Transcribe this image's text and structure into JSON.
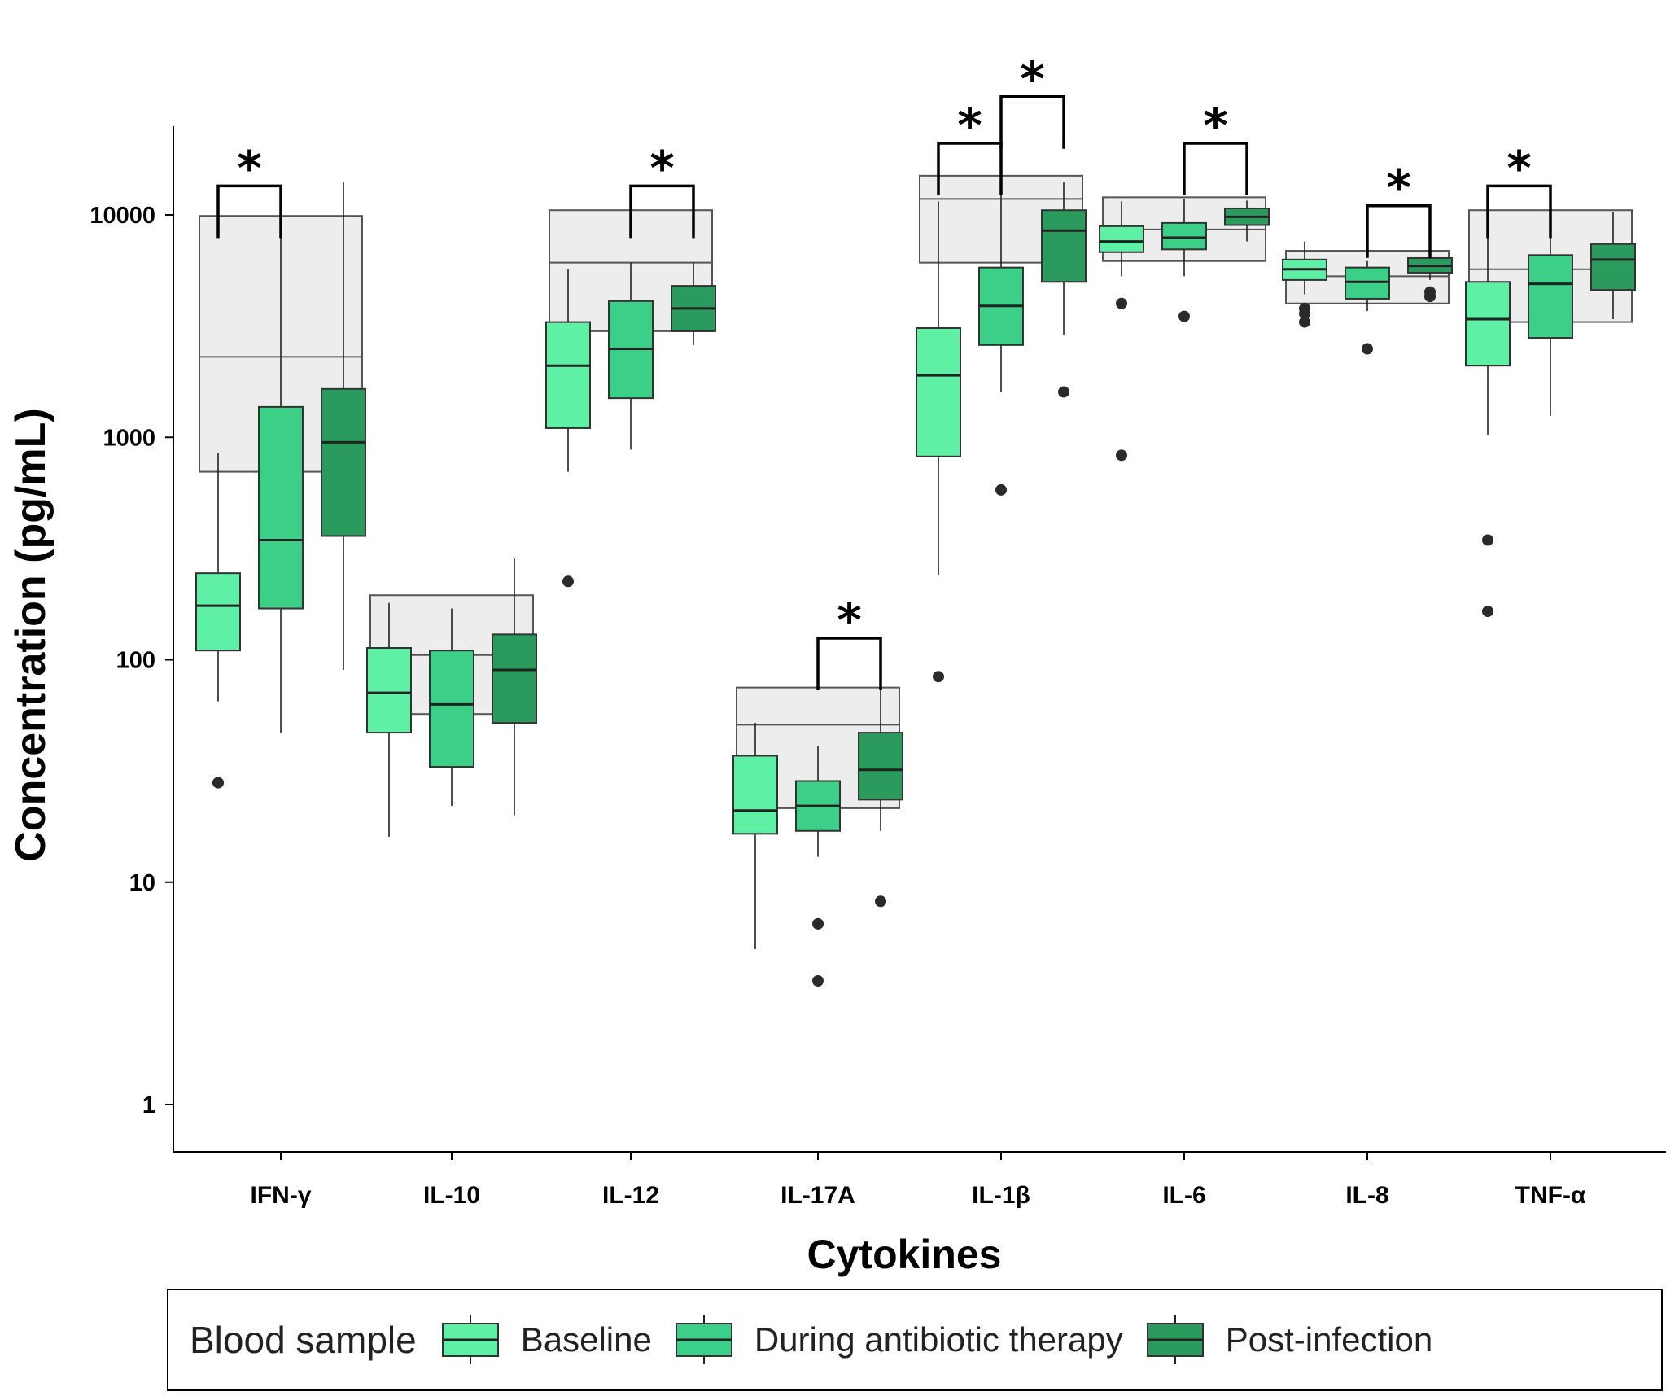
{
  "chart_data": {
    "type": "boxplot",
    "xlabel": "Cytokines",
    "ylabel": "Concentration (pg/mL)",
    "yscale": "log10",
    "ylim": [
      0.7,
      25000
    ],
    "yticks": [
      1,
      10,
      100,
      1000,
      10000
    ],
    "ytick_labels": [
      "1",
      "10",
      "100",
      "1000",
      "10000"
    ],
    "categories": [
      "IFN-γ",
      "IL-10",
      "IL-12",
      "IL-17A",
      "IL-1β",
      "IL-6",
      "IL-8",
      "TNF-α"
    ],
    "significance_marker": "*",
    "series": [
      {
        "name": "Baseline",
        "color": "#5ef0a5",
        "boxes": [
          {
            "q1": 110,
            "median": 175,
            "q3": 245,
            "whisker_low": 65,
            "whisker_high": 850,
            "outliers": [
              28
            ]
          },
          {
            "q1": 47,
            "median": 71,
            "q3": 113,
            "whisker_low": 16,
            "whisker_high": 180,
            "outliers": []
          },
          {
            "q1": 1100,
            "median": 2100,
            "q3": 3300,
            "whisker_low": 700,
            "whisker_high": 5700,
            "outliers": [
              225
            ]
          },
          {
            "q1": 16.5,
            "median": 21,
            "q3": 37,
            "whisker_low": 5,
            "whisker_high": 52,
            "outliers": []
          },
          {
            "q1": 820,
            "median": 1900,
            "q3": 3100,
            "whisker_low": 240,
            "whisker_high": 11500,
            "outliers": [
              84
            ]
          },
          {
            "q1": 6800,
            "median": 7600,
            "q3": 8900,
            "whisker_low": 5300,
            "whisker_high": 11500,
            "outliers": [
              4000,
              830
            ]
          },
          {
            "q1": 5100,
            "median": 5700,
            "q3": 6300,
            "whisker_low": 4400,
            "whisker_high": 7600,
            "outliers": [
              3800,
              3600,
              3300
            ]
          },
          {
            "q1": 2100,
            "median": 3400,
            "q3": 5000,
            "whisker_low": 1020,
            "whisker_high": 9600,
            "outliers": [
              345,
              165
            ]
          }
        ]
      },
      {
        "name": "During antibiotic therapy",
        "color": "#3ccf87",
        "boxes": [
          {
            "q1": 170,
            "median": 345,
            "q3": 1370,
            "whisker_low": 47,
            "whisker_high": 9300,
            "outliers": []
          },
          {
            "q1": 33,
            "median": 63,
            "q3": 110,
            "whisker_low": 22,
            "whisker_high": 170,
            "outliers": []
          },
          {
            "q1": 1500,
            "median": 2500,
            "q3": 4100,
            "whisker_low": 880,
            "whisker_high": 6100,
            "outliers": []
          },
          {
            "q1": 17,
            "median": 22,
            "q3": 28.5,
            "whisker_low": 13,
            "whisker_high": 41,
            "outliers": [
              6.5,
              3.6
            ]
          },
          {
            "q1": 2600,
            "median": 3900,
            "q3": 5800,
            "whisker_low": 1600,
            "whisker_high": 13000,
            "outliers": [
              580
            ]
          },
          {
            "q1": 7000,
            "median": 7900,
            "q3": 9200,
            "whisker_low": 5300,
            "whisker_high": 11800,
            "outliers": [
              3500
            ]
          },
          {
            "q1": 4200,
            "median": 5000,
            "q3": 5800,
            "whisker_low": 3700,
            "whisker_high": 6200,
            "outliers": [
              2500
            ]
          },
          {
            "q1": 2800,
            "median": 4900,
            "q3": 6600,
            "whisker_low": 1250,
            "whisker_high": 10100,
            "outliers": []
          }
        ]
      },
      {
        "name": "Post-infection",
        "color": "#2a9a5d",
        "boxes": [
          {
            "q1": 360,
            "median": 950,
            "q3": 1650,
            "whisker_low": 90,
            "whisker_high": 14000,
            "outliers": []
          },
          {
            "q1": 52,
            "median": 90,
            "q3": 130,
            "whisker_low": 20,
            "whisker_high": 285,
            "outliers": []
          },
          {
            "q1": 3000,
            "median": 3800,
            "q3": 4800,
            "whisker_low": 2600,
            "whisker_high": 6100,
            "outliers": []
          },
          {
            "q1": 23.5,
            "median": 32,
            "q3": 47,
            "whisker_low": 17,
            "whisker_high": 96,
            "outliers": [
              8.2
            ]
          },
          {
            "q1": 5000,
            "median": 8500,
            "q3": 10500,
            "whisker_low": 2900,
            "whisker_high": 14000,
            "outliers": [
              1600
            ]
          },
          {
            "q1": 9000,
            "median": 9800,
            "q3": 10700,
            "whisker_low": 7600,
            "whisker_high": 11600,
            "outliers": []
          },
          {
            "q1": 5500,
            "median": 5900,
            "q3": 6400,
            "whisker_low": 5100,
            "whisker_high": 7000,
            "outliers": [
              4500,
              4300
            ]
          },
          {
            "q1": 4600,
            "median": 6300,
            "q3": 7400,
            "whisker_low": 3400,
            "whisker_high": 10300,
            "outliers": []
          }
        ]
      }
    ],
    "reference_ranges": [
      {
        "low": 700,
        "median": 2300,
        "high": 9900
      },
      {
        "low": 57,
        "median": 105,
        "high": 195
      },
      {
        "low": 3000,
        "median": 6100,
        "high": 10500
      },
      {
        "low": 21.5,
        "median": 51,
        "high": 75
      },
      {
        "low": 6100,
        "median": 11800,
        "high": 15000
      },
      {
        "low": 6200,
        "median": 8600,
        "high": 12000
      },
      {
        "low": 4000,
        "median": 5300,
        "high": 6900
      },
      {
        "low": 3300,
        "median": 5700,
        "high": 10500
      }
    ],
    "significance": [
      {
        "category": 0,
        "from": 0,
        "to": 1,
        "level": 13500
      },
      {
        "category": 2,
        "from": 1,
        "to": 2,
        "level": 13500
      },
      {
        "category": 3,
        "from": 1,
        "to": 2,
        "level": 125
      },
      {
        "category": 4,
        "from": 0,
        "to": 1,
        "level": 21000
      },
      {
        "category": 4,
        "from": 1,
        "to": 2,
        "level": 34000
      },
      {
        "category": 5,
        "from": 1,
        "to": 2,
        "level": 21000
      },
      {
        "category": 6,
        "from": 1,
        "to": 2,
        "level": 11000
      },
      {
        "category": 7,
        "from": 0,
        "to": 1,
        "level": 13500
      }
    ]
  },
  "legend": {
    "title": "Blood sample",
    "items": [
      {
        "label": "Baseline",
        "color": "#5ef0a5"
      },
      {
        "label": "During antibiotic therapy",
        "color": "#3ccf87"
      },
      {
        "label": "Post-infection",
        "color": "#2a9a5d"
      }
    ]
  }
}
